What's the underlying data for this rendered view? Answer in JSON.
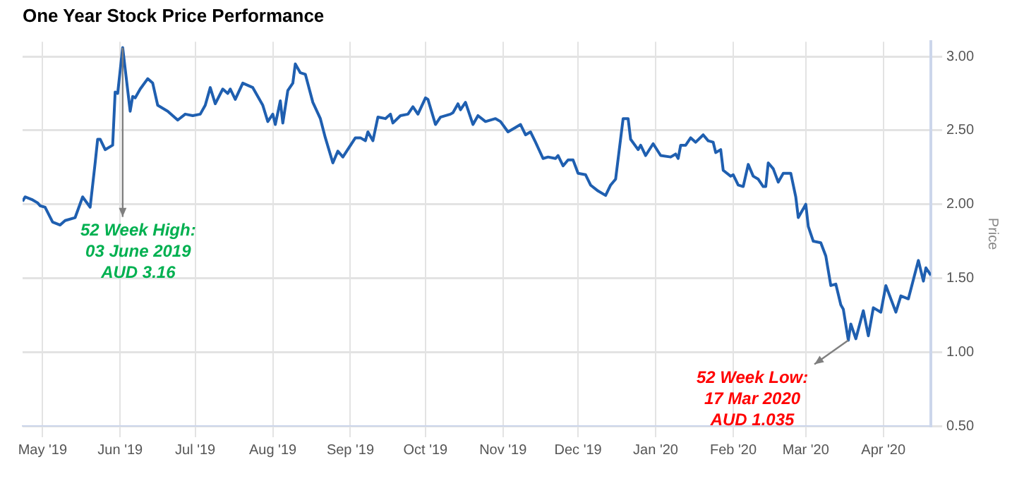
{
  "chart_data": {
    "type": "line",
    "title": "One Year Stock Price Performance",
    "ylabel": "Price",
    "x": [
      "2019-04-23",
      "2019-04-24",
      "2019-04-27",
      "2019-04-29",
      "2019-04-30",
      "2019-05-02",
      "2019-05-05",
      "2019-05-08",
      "2019-05-10",
      "2019-05-14",
      "2019-05-17",
      "2019-05-20",
      "2019-05-22",
      "2019-05-23",
      "2019-05-24",
      "2019-05-26",
      "2019-05-29",
      "2019-05-30",
      "2019-05-31",
      "2019-06-02",
      "2019-06-05",
      "2019-06-06",
      "2019-06-07",
      "2019-06-09",
      "2019-06-12",
      "2019-06-14",
      "2019-06-16",
      "2019-06-20",
      "2019-06-24",
      "2019-06-27",
      "2019-06-30",
      "2019-07-03",
      "2019-07-05",
      "2019-07-07",
      "2019-07-09",
      "2019-07-12",
      "2019-07-14",
      "2019-07-15",
      "2019-07-17",
      "2019-07-20",
      "2019-07-24",
      "2019-07-28",
      "2019-07-30",
      "2019-08-01",
      "2019-08-02",
      "2019-08-04",
      "2019-08-05",
      "2019-08-07",
      "2019-08-09",
      "2019-08-10",
      "2019-08-12",
      "2019-08-14",
      "2019-08-17",
      "2019-08-20",
      "2019-08-22",
      "2019-08-25",
      "2019-08-27",
      "2019-08-29",
      "2019-09-03",
      "2019-09-05",
      "2019-09-07",
      "2019-09-08",
      "2019-09-10",
      "2019-09-12",
      "2019-09-15",
      "2019-09-17",
      "2019-09-18",
      "2019-09-21",
      "2019-09-24",
      "2019-09-26",
      "2019-09-28",
      "2019-10-01",
      "2019-10-02",
      "2019-10-05",
      "2019-10-07",
      "2019-10-11",
      "2019-10-12",
      "2019-10-14",
      "2019-10-15",
      "2019-10-17",
      "2019-10-20",
      "2019-10-22",
      "2019-10-25",
      "2019-10-29",
      "2019-10-31",
      "2019-11-03",
      "2019-11-06",
      "2019-11-08",
      "2019-11-10",
      "2019-11-12",
      "2019-11-14",
      "2019-11-17",
      "2019-11-19",
      "2019-11-22",
      "2019-11-23",
      "2019-11-25",
      "2019-11-27",
      "2019-11-29",
      "2019-12-01",
      "2019-12-04",
      "2019-12-06",
      "2019-12-09",
      "2019-12-12",
      "2019-12-14",
      "2019-12-16",
      "2019-12-19",
      "2019-12-21",
      "2019-12-22",
      "2019-12-25",
      "2019-12-26",
      "2019-12-28",
      "2019-12-31",
      "2020-01-03",
      "2020-01-07",
      "2020-01-09",
      "2020-01-10",
      "2020-01-11",
      "2020-01-13",
      "2020-01-15",
      "2020-01-17",
      "2020-01-20",
      "2020-01-22",
      "2020-01-24",
      "2020-01-25",
      "2020-01-27",
      "2020-01-28",
      "2020-01-31",
      "2020-02-01",
      "2020-02-03",
      "2020-02-05",
      "2020-02-07",
      "2020-02-09",
      "2020-02-11",
      "2020-02-13",
      "2020-02-14",
      "2020-02-15",
      "2020-02-17",
      "2020-02-19",
      "2020-02-21",
      "2020-02-24",
      "2020-02-26",
      "2020-02-27",
      "2020-03-01",
      "2020-03-02",
      "2020-03-04",
      "2020-03-07",
      "2020-03-09",
      "2020-03-11",
      "2020-03-13",
      "2020-03-15",
      "2020-03-16",
      "2020-03-18",
      "2020-03-19",
      "2020-03-21",
      "2020-03-24",
      "2020-03-26",
      "2020-03-28",
      "2020-03-31",
      "2020-04-02",
      "2020-04-06",
      "2020-04-08",
      "2020-04-11",
      "2020-04-15",
      "2020-04-17",
      "2020-04-18",
      "2020-04-20"
    ],
    "series": [
      {
        "color": "#1f5fb0",
        "values": [
          2.02,
          2.05,
          2.03,
          2.01,
          1.99,
          1.98,
          1.88,
          1.86,
          1.89,
          1.91,
          2.05,
          1.98,
          2.28,
          2.44,
          2.44,
          2.37,
          2.4,
          2.76,
          2.75,
          3.06,
          2.63,
          2.73,
          2.72,
          2.78,
          2.85,
          2.82,
          2.67,
          2.63,
          2.57,
          2.61,
          2.6,
          2.61,
          2.67,
          2.79,
          2.68,
          2.78,
          2.75,
          2.78,
          2.71,
          2.82,
          2.79,
          2.67,
          2.56,
          2.61,
          2.54,
          2.7,
          2.55,
          2.77,
          2.82,
          2.95,
          2.89,
          2.88,
          2.69,
          2.58,
          2.45,
          2.28,
          2.36,
          2.32,
          2.45,
          2.45,
          2.43,
          2.49,
          2.43,
          2.59,
          2.58,
          2.61,
          2.55,
          2.6,
          2.61,
          2.66,
          2.61,
          2.72,
          2.71,
          2.54,
          2.59,
          2.61,
          2.62,
          2.68,
          2.64,
          2.69,
          2.54,
          2.6,
          2.56,
          2.58,
          2.56,
          2.49,
          2.52,
          2.54,
          2.47,
          2.49,
          2.42,
          2.31,
          2.32,
          2.31,
          2.33,
          2.26,
          2.3,
          2.3,
          2.21,
          2.2,
          2.13,
          2.09,
          2.06,
          2.13,
          2.17,
          2.58,
          2.58,
          2.44,
          2.37,
          2.4,
          2.33,
          2.41,
          2.33,
          2.32,
          2.34,
          2.31,
          2.4,
          2.4,
          2.45,
          2.42,
          2.47,
          2.43,
          2.42,
          2.35,
          2.37,
          2.23,
          2.19,
          2.2,
          2.13,
          2.12,
          2.27,
          2.19,
          2.17,
          2.12,
          2.12,
          2.28,
          2.24,
          2.15,
          2.21,
          2.21,
          2.05,
          1.91,
          2.0,
          1.85,
          1.75,
          1.74,
          1.65,
          1.45,
          1.46,
          1.32,
          1.29,
          1.08,
          1.19,
          1.09,
          1.28,
          1.11,
          1.3,
          1.27,
          1.45,
          1.27,
          1.38,
          1.36,
          1.62,
          1.48,
          1.57,
          1.52
        ]
      }
    ],
    "xlim": [
      "2019-04-23",
      "2020-04-20"
    ],
    "xticks": [
      {
        "value": "2019-05-01",
        "label": "May '19"
      },
      {
        "value": "2019-06-01",
        "label": "Jun '19"
      },
      {
        "value": "2019-07-01",
        "label": "Jul '19"
      },
      {
        "value": "2019-08-01",
        "label": "Aug '19"
      },
      {
        "value": "2019-09-01",
        "label": "Sep '19"
      },
      {
        "value": "2019-10-01",
        "label": "Oct '19"
      },
      {
        "value": "2019-11-01",
        "label": "Nov '19"
      },
      {
        "value": "2019-12-01",
        "label": "Dec '19"
      },
      {
        "value": "2020-01-01",
        "label": "Jan '20"
      },
      {
        "value": "2020-02-01",
        "label": "Feb '20"
      },
      {
        "value": "2020-03-01",
        "label": "Mar '20"
      },
      {
        "value": "2020-04-01",
        "label": "Apr '20"
      }
    ],
    "ylim": [
      0.5,
      3.1
    ],
    "yticks": [
      {
        "value": 0.5,
        "label": "0.50"
      },
      {
        "value": 1,
        "label": "1.00"
      },
      {
        "value": 1.5,
        "label": "1.50"
      },
      {
        "value": 2,
        "label": "2.00"
      },
      {
        "value": 2.5,
        "label": "2.50"
      },
      {
        "value": 3,
        "label": "3.00"
      }
    ],
    "grid": true,
    "marker": "none",
    "line_style": "solid",
    "legend": false,
    "annotations": [
      {
        "text": "52 Week High:\n03 June 2019\nAUD 3.16",
        "x": "2019-06-02",
        "y": 3.06
      },
      {
        "text": "52 Week Low:\n17 Mar 2020\nAUD 1.035",
        "x": "2020-03-18",
        "y": 1.08
      }
    ]
  }
}
